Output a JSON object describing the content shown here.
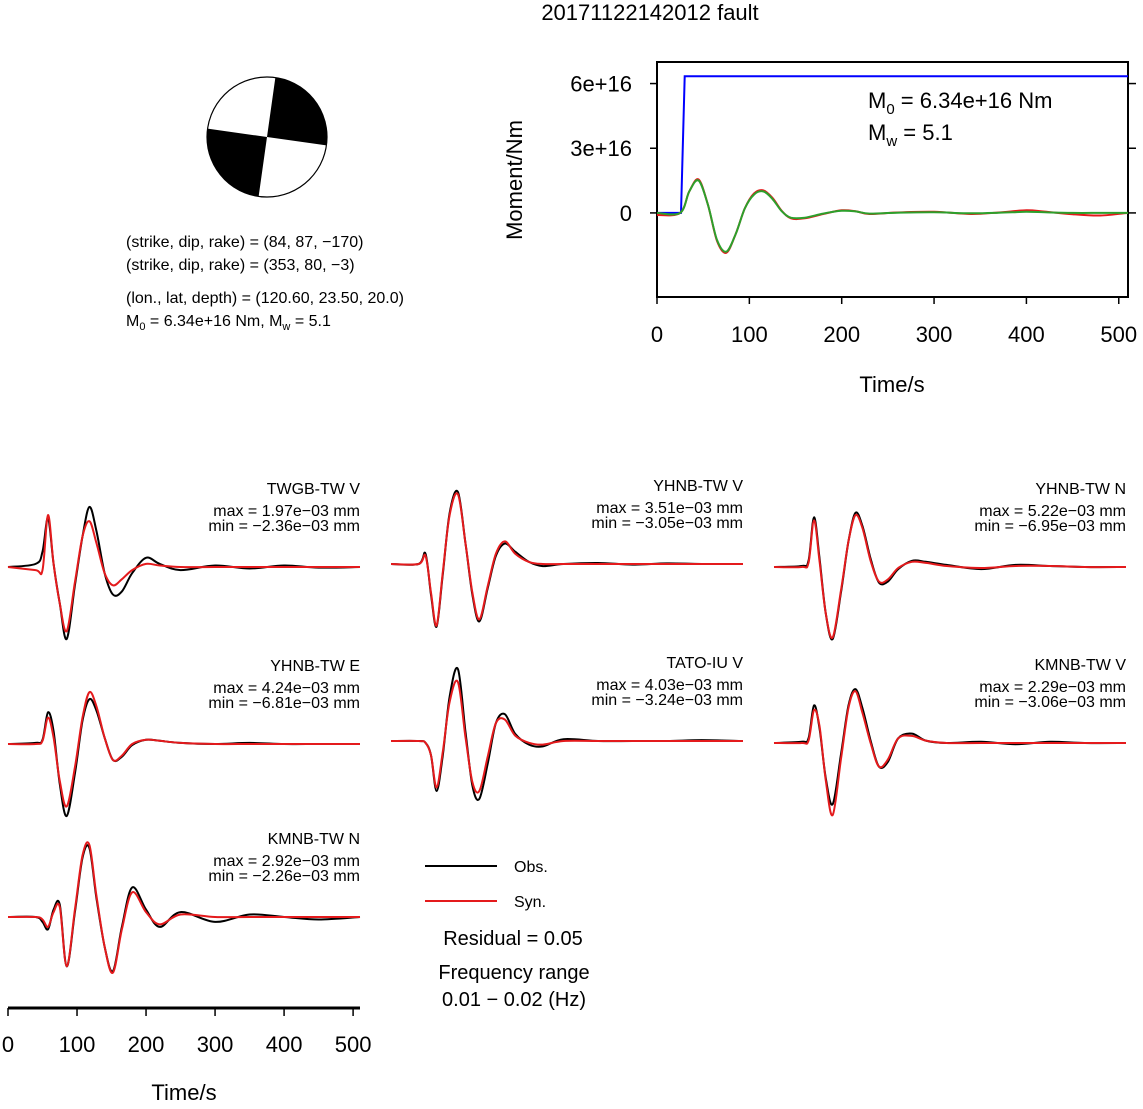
{
  "title": "20171122142012 fault",
  "mechanism": {
    "plane1": "(strike, dip, rake) = (84, 87, −170)",
    "plane2": "(strike, dip, rake) = (353, 80, −3)",
    "location": "(lon., lat, depth) = (120.60, 23.50, 20.0)",
    "moment_prefix": "M",
    "moment_sub": "0",
    "moment_value": " = 6.34e+16 Nm, M",
    "mw_sub": "w",
    "mw_value": " = 5.1"
  },
  "stf_annotation": {
    "m0_main": "M",
    "m0_sub": "0",
    "m0_value": " = 6.34e+16 Nm",
    "mw_main": "M",
    "mw_sub": "w",
    "mw_value": " = 5.1"
  },
  "legend": {
    "obs": "Obs.",
    "syn": "Syn.",
    "obs_color": "#000000",
    "syn_color": "#e41a1c",
    "residual": "Residual = 0.05",
    "freq_label": "Frequency range",
    "freq_value": "0.01 − 0.02 (Hz)"
  },
  "chart_data": [
    {
      "type": "line",
      "title": "",
      "xlabel": "Time/s",
      "ylabel": "Moment/Nm",
      "xlim": [
        0,
        510
      ],
      "ylim": [
        -3.9e+16,
        7e+16
      ],
      "x_ticks": [
        0,
        100,
        200,
        300,
        400,
        500
      ],
      "x_tick_labels": [
        "0",
        "100",
        "200",
        "300",
        "400",
        "500"
      ],
      "y_ticks": [
        0,
        3e+16,
        6e+16
      ],
      "y_tick_labels": [
        "0",
        "3e+16",
        "6e+16"
      ],
      "series": [
        {
          "color": "#0000ff",
          "x": [
            0,
            26,
            30,
            510
          ],
          "y": [
            0,
            0,
            6.34e+16,
            6.34e+16
          ]
        },
        {
          "color": "#e41a1c",
          "x": [
            0,
            25,
            35,
            45,
            55,
            65,
            75,
            85,
            95,
            105,
            115,
            125,
            135,
            145,
            160,
            180,
            200,
            215,
            230,
            260,
            300,
            340,
            370,
            400,
            420,
            450,
            480,
            510
          ],
          "y": [
            -1000000000000000.0,
            0,
            1e+16,
            1.55e+16,
            4000000000000000.0,
            -1.3e+16,
            -1.85e+16,
            -1e+16,
            2000000000000000.0,
            9000000000000000.0,
            1.05e+16,
            7000000000000000.0,
            1000000000000000.0,
            -2500000000000000.0,
            -2500000000000000.0,
            -500000000000000.0,
            1200000000000000.0,
            800000000000000.0,
            -500000000000000.0,
            200000000000000.0,
            500000000000000.0,
            -500000000000000.0,
            200000000000000.0,
            1200000000000000.0,
            600000000000000.0,
            -600000000000000.0,
            -1200000000000000.0,
            0
          ]
        },
        {
          "color": "#2ca02c",
          "x": [
            0,
            25,
            35,
            45,
            55,
            65,
            75,
            85,
            95,
            105,
            115,
            125,
            135,
            145,
            160,
            180,
            200,
            215,
            230,
            260,
            300,
            340,
            370,
            400,
            420,
            450,
            480,
            510
          ],
          "y": [
            0,
            0,
            1e+16,
            1.5e+16,
            4000000000000000.0,
            -1.25e+16,
            -1.8e+16,
            -1e+16,
            2000000000000000.0,
            8500000000000000.0,
            1e+16,
            6500000000000000.0,
            800000000000000.0,
            -2200000000000000.0,
            -2200000000000000.0,
            -300000000000000.0,
            1000000000000000.0,
            700000000000000.0,
            -300000000000000.0,
            100000000000000.0,
            300000000000000.0,
            -200000000000000.0,
            100000000000000.0,
            500000000000000.0,
            300000000000000.0,
            0,
            0,
            0
          ]
        }
      ]
    },
    {
      "type": "line",
      "title": "",
      "xlabel": "Time/s",
      "xlim": [
        0,
        510
      ],
      "x_ticks": [
        0,
        100,
        200,
        300,
        400,
        500
      ],
      "x_tick_labels": [
        "0",
        "100",
        "200",
        "300",
        "400",
        "500"
      ],
      "series_names": [
        "Obs.",
        "Syn."
      ],
      "panels": [
        {
          "station": "TWGB-TW V",
          "max": "max = 1.97e−03 mm",
          "min": "min = −2.36e−03 mm",
          "x": [
            0,
            40,
            50,
            58,
            66,
            75,
            85,
            97,
            108,
            118,
            128,
            140,
            152,
            165,
            180,
            200,
            220,
            250,
            300,
            350,
            400,
            450,
            510
          ],
          "obs": [
            0,
            0.1,
            0.5,
            1.6,
            0.1,
            -1.2,
            -2.36,
            -0.6,
            1.0,
            1.97,
            1.2,
            -0.2,
            -0.9,
            -0.8,
            -0.2,
            0.3,
            0.1,
            -0.1,
            0.05,
            -0.05,
            0.05,
            -0.02,
            0
          ],
          "syn": [
            0,
            -0.1,
            -0.1,
            1.7,
            0.1,
            -1.2,
            -2.1,
            -0.5,
            1.0,
            1.5,
            0.8,
            -0.2,
            -0.6,
            -0.4,
            -0.1,
            0.1,
            0.05,
            0,
            0,
            0,
            0,
            0,
            0
          ]
        },
        {
          "station": "YHNB-TW V",
          "max": "max = 3.51e−03 mm",
          "min": "min = −3.05e−03 mm",
          "x": [
            0,
            40,
            50,
            58,
            66,
            75,
            85,
            97,
            108,
            118,
            128,
            140,
            152,
            165,
            180,
            200,
            220,
            250,
            300,
            350,
            400,
            450,
            510
          ],
          "obs": [
            0,
            0,
            0.5,
            -1.5,
            -3.05,
            -0.5,
            2.5,
            3.51,
            1.0,
            -1.5,
            -2.8,
            -1.2,
            0.4,
            1.0,
            0.6,
            0.1,
            -0.1,
            0,
            0.05,
            -0.03,
            0.03,
            0,
            0
          ],
          "syn": [
            0,
            0,
            0.4,
            -1.4,
            -3.0,
            -0.4,
            2.4,
            3.4,
            1.0,
            -1.4,
            -2.7,
            -1.1,
            0.5,
            1.1,
            0.5,
            0.1,
            0,
            0,
            0,
            0,
            0,
            0,
            0
          ]
        },
        {
          "station": "YHNB-TW N",
          "max": "max = 5.22e−03 mm",
          "min": "min = −6.95e−03 mm",
          "x": [
            0,
            40,
            50,
            58,
            66,
            75,
            85,
            97,
            108,
            118,
            128,
            140,
            152,
            165,
            180,
            200,
            220,
            250,
            300,
            350,
            400,
            450,
            510
          ],
          "obs": [
            0,
            0.1,
            0.6,
            4.8,
            0.8,
            -4.5,
            -6.95,
            -2.5,
            2.5,
            5.22,
            4.0,
            0.8,
            -1.5,
            -1.4,
            -0.2,
            0.6,
            0.5,
            0.2,
            -0.2,
            0.2,
            0.1,
            0,
            0
          ],
          "syn": [
            0,
            0,
            0.4,
            4.5,
            0.5,
            -4.5,
            -6.8,
            -2.3,
            2.5,
            5.0,
            3.8,
            0.6,
            -1.4,
            -1.2,
            -0.1,
            0.5,
            0.4,
            0.1,
            -0.1,
            0.1,
            0.1,
            0,
            0
          ]
        },
        {
          "station": "YHNB-TW E",
          "max": "max = 4.24e−03 mm",
          "min": "min = −6.81e−03 mm",
          "x": [
            0,
            40,
            50,
            58,
            66,
            75,
            85,
            97,
            108,
            118,
            128,
            140,
            152,
            165,
            180,
            200,
            220,
            250,
            300,
            350,
            400,
            450,
            510
          ],
          "obs": [
            0,
            0.1,
            0.4,
            3.0,
            1.2,
            -3.8,
            -6.81,
            -2.8,
            2.2,
            4.24,
            3.2,
            0.6,
            -1.5,
            -1.2,
            -0.1,
            0.4,
            0.3,
            0.1,
            0,
            0.1,
            0,
            0,
            0
          ],
          "syn": [
            0,
            0,
            0.3,
            2.5,
            0.6,
            -3.5,
            -5.9,
            -2.2,
            2.5,
            4.9,
            3.6,
            0.6,
            -1.5,
            -1.1,
            0,
            0.4,
            0.3,
            0.1,
            0,
            0,
            0,
            0,
            0
          ]
        },
        {
          "station": "TATO-IU V",
          "max": "max = 4.03e−03 mm",
          "min": "min = −3.24e−03 mm",
          "x": [
            0,
            40,
            50,
            58,
            66,
            75,
            85,
            97,
            108,
            118,
            128,
            140,
            152,
            165,
            180,
            200,
            220,
            250,
            300,
            350,
            400,
            450,
            510
          ],
          "obs": [
            0,
            0,
            -0.1,
            -0.8,
            -2.8,
            -0.8,
            2.5,
            4.03,
            0.5,
            -2.5,
            -3.24,
            -1.3,
            1.0,
            1.5,
            0.4,
            -0.2,
            -0.3,
            0.1,
            0,
            0,
            0,
            0.05,
            0
          ],
          "syn": [
            0,
            0,
            -0.1,
            -0.8,
            -2.6,
            -0.6,
            2.2,
            3.3,
            0.2,
            -2.3,
            -2.8,
            -0.9,
            1.0,
            1.2,
            0.3,
            -0.1,
            -0.2,
            0,
            0,
            0,
            0,
            0,
            0
          ]
        },
        {
          "station": "KMNB-TW V",
          "max": "max = 2.29e−03 mm",
          "min": "min = −3.06e−03 mm",
          "x": [
            0,
            40,
            50,
            58,
            66,
            75,
            85,
            97,
            108,
            118,
            128,
            140,
            152,
            165,
            180,
            200,
            220,
            250,
            300,
            350,
            400,
            450,
            510
          ],
          "obs": [
            0,
            0.05,
            0.2,
            1.6,
            0.6,
            -1.5,
            -2.6,
            -0.5,
            1.6,
            2.29,
            1.5,
            0.1,
            -1.0,
            -0.8,
            0.2,
            0.4,
            0.1,
            0,
            0.05,
            -0.05,
            0.05,
            0,
            0
          ],
          "syn": [
            0,
            0,
            0.1,
            1.4,
            0.7,
            -1.6,
            -3.06,
            -0.7,
            1.5,
            2.2,
            1.3,
            0,
            -1.0,
            -0.7,
            0.2,
            0.3,
            0.1,
            0,
            0,
            0,
            0,
            0,
            0
          ]
        },
        {
          "station": "KMNB-TW N",
          "max": "max = 2.92e−03 mm",
          "min": "min = −2.26e−03 mm",
          "x": [
            0,
            40,
            50,
            58,
            66,
            75,
            85,
            97,
            108,
            118,
            128,
            140,
            152,
            165,
            180,
            200,
            220,
            250,
            300,
            350,
            400,
            450,
            510
          ],
          "obs": [
            0,
            0,
            -0.2,
            -0.5,
            0.3,
            0.5,
            -2.0,
            0.2,
            2.4,
            2.8,
            0.8,
            -1.2,
            -2.2,
            -0.4,
            1.2,
            0.3,
            -0.4,
            0.2,
            -0.2,
            0.1,
            0,
            -0.1,
            0
          ],
          "syn": [
            0,
            0,
            -0.1,
            -0.4,
            0.2,
            0.4,
            -2.0,
            0.3,
            2.5,
            2.92,
            0.9,
            -1.2,
            -2.26,
            -0.5,
            1.0,
            0.2,
            -0.3,
            0.1,
            0,
            0,
            0,
            0,
            0
          ]
        }
      ]
    }
  ]
}
